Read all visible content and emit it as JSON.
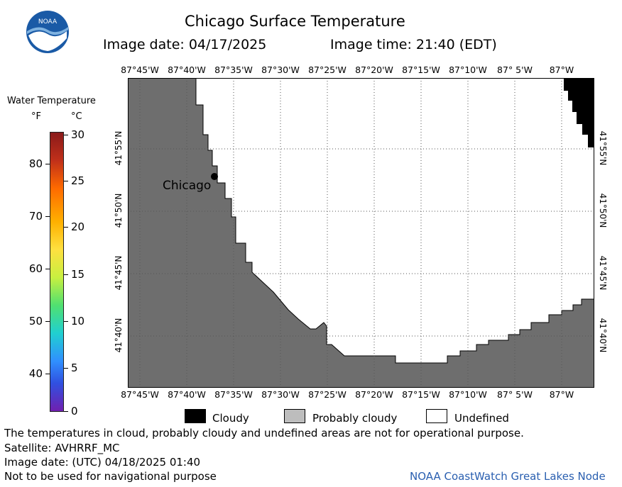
{
  "header": {
    "title": "Chicago Surface Temperature",
    "date_label": "Image date: 04/17/2025",
    "time_label": "Image time: 21:40 (EDT)",
    "logo_text": "NOAA"
  },
  "colorbar": {
    "title": "Water Temperature",
    "unit_f": "°F",
    "unit_c": "°C",
    "f_ticks": [
      "80",
      "70",
      "60",
      "50",
      "40"
    ],
    "c_ticks": [
      "30",
      "25",
      "20",
      "15",
      "10",
      "5",
      "0"
    ]
  },
  "map": {
    "lon_labels": [
      "87°45'W",
      "87°40'W",
      "87°35'W",
      "87°30'W",
      "87°25'W",
      "87°20'W",
      "87°15'W",
      "87°10'W",
      "87° 5'W",
      "87°W"
    ],
    "lat_labels": [
      "41°55'N",
      "41°50'N",
      "41°45'N",
      "41°40'N"
    ],
    "city_label": "Chicago",
    "land_color": "#6e6e6e",
    "cloud_color": "#000000"
  },
  "legend": {
    "cloudy": "Cloudy",
    "probably_cloudy": "Probably cloudy",
    "undefined": "Undefined"
  },
  "footer": {
    "disclaimer": "The temperatures in cloud, probably cloudy and undefined areas are not for operational purpose.",
    "satellite": "Satellite: AVHRRF_MC",
    "utc_date": "Image date: (UTC) 04/18/2025  01:40",
    "nav_warning": "Not to be used for navigational purpose",
    "credit": "NOAA CoastWatch Great Lakes Node",
    "credit_color": "#2a5fb0"
  }
}
